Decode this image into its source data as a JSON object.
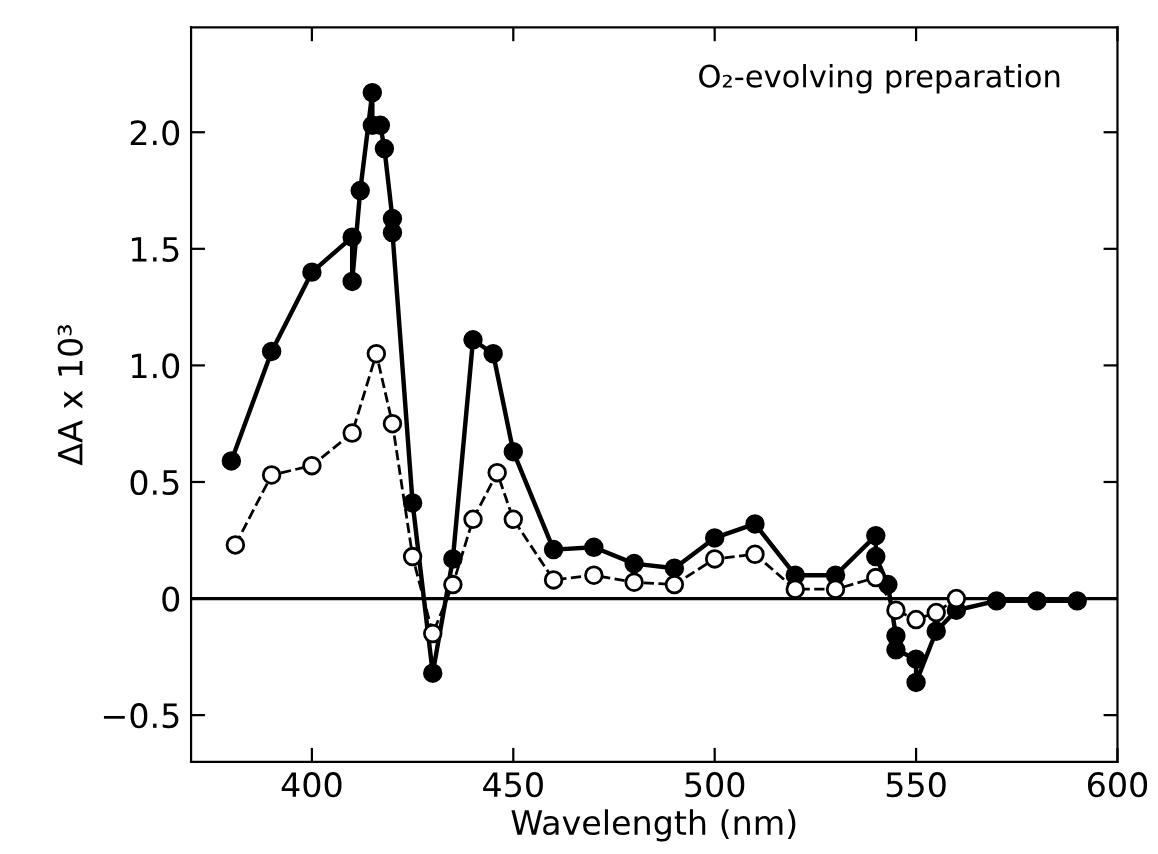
{
  "chart_data": {
    "type": "line",
    "xlabel": "Wavelength (nm)",
    "ylabel": "ΔA x 10³",
    "annotations": [
      "O₂-evolving preparation"
    ],
    "xlim": [
      370,
      600
    ],
    "xticks": [
      400,
      450,
      500,
      550,
      600
    ],
    "ylim": [
      -0.7,
      2.45
    ],
    "yticks": [
      {
        "value": -0.5,
        "label": "−0.5"
      },
      0,
      {
        "value": 0.5,
        "label": "0.5"
      },
      {
        "value": 1,
        "label": "1.0"
      },
      {
        "value": 1.5,
        "label": "1.5"
      },
      {
        "value": 2,
        "label": "2.0"
      }
    ],
    "ref_lines": [
      {
        "axis": "y",
        "value": 0,
        "label": null,
        "color": "#000000"
      }
    ],
    "marker": "circle",
    "grid": false,
    "legend": false,
    "series": [
      {
        "color": "#000000",
        "line_style": "solid",
        "x": [
          380,
          390,
          400,
          410,
          410,
          412,
          415,
          415,
          417,
          418,
          420,
          420,
          425,
          430,
          435,
          440,
          445,
          450,
          460,
          470,
          480,
          490,
          500,
          510,
          520,
          530,
          540,
          540,
          543,
          545,
          545,
          550,
          550,
          555,
          560,
          570,
          580,
          590
        ],
        "values": [
          0.59,
          1.06,
          1.4,
          1.55,
          1.36,
          1.75,
          2.17,
          2.03,
          2.03,
          1.93,
          1.63,
          1.57,
          0.41,
          -0.32,
          0.17,
          1.11,
          1.05,
          0.63,
          0.21,
          0.22,
          0.15,
          0.13,
          0.26,
          0.32,
          0.1,
          0.1,
          0.27,
          0.18,
          0.06,
          -0.16,
          -0.22,
          -0.26,
          -0.36,
          -0.14,
          -0.05,
          -0.01,
          -0.01,
          -0.01
        ]
      },
      {
        "color": "#000000",
        "line_style": "dashed",
        "x": [
          381,
          390,
          400,
          410,
          416,
          420,
          425,
          430,
          435,
          440,
          446,
          450,
          460,
          470,
          480,
          490,
          500,
          510,
          520,
          530,
          540,
          545,
          550,
          555,
          560
        ],
        "values": [
          0.23,
          0.53,
          0.57,
          0.71,
          1.05,
          0.75,
          0.18,
          -0.15,
          0.06,
          0.34,
          0.54,
          0.34,
          0.08,
          0.1,
          0.07,
          0.06,
          0.17,
          0.19,
          0.04,
          0.04,
          0.09,
          -0.05,
          -0.09,
          -0.06,
          0
        ]
      }
    ]
  }
}
